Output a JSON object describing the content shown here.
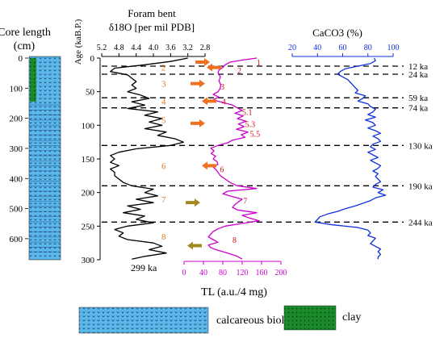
{
  "chart_data": {
    "type": "line",
    "core_column": {
      "title_line1": "Core length",
      "title_line2": "(cm)",
      "y_ticks": [
        "0",
        "100",
        "200",
        "300",
        "400",
        "500",
        "600"
      ],
      "ylim": [
        0,
        670
      ]
    },
    "age_axis": {
      "label": "Age (kaB.P.)",
      "ticks": [
        "0",
        "50",
        "100",
        "150",
        "200",
        "250",
        "300"
      ],
      "ylim": [
        0,
        300
      ]
    },
    "d18o_axis": {
      "title_line1": "Foram bent",
      "title_line2": "δ18O [per mil PDB]",
      "ticks": [
        "5.2",
        "4.8",
        "4.4",
        "4.0",
        "3.6",
        "3.2",
        "2.8"
      ],
      "xlim": [
        5.2,
        2.8
      ],
      "reversed": true
    },
    "tl_axis": {
      "label": "TL (a.u./4 mg)",
      "ticks": [
        "0",
        "40",
        "80",
        "120",
        "160",
        "200"
      ],
      "xlim": [
        0,
        200
      ]
    },
    "caco3_axis": {
      "label": "CaCO3 (%)",
      "ticks": [
        "20",
        "40",
        "60",
        "80",
        "100"
      ],
      "xlim": [
        20,
        100
      ]
    },
    "age_boundaries": [
      {
        "age": 12,
        "label": "12 ka"
      },
      {
        "age": 24,
        "label": "24 ka"
      },
      {
        "age": 59,
        "label": "59 ka"
      },
      {
        "age": 74,
        "label": "74 ka"
      },
      {
        "age": 130,
        "label": "130 ka"
      },
      {
        "age": 190,
        "label": "190 ka"
      },
      {
        "age": 244,
        "label": "244 ka"
      }
    ],
    "bottom_age_label": "299 ka",
    "stage_labels_orange": [
      {
        "text": "2",
        "age": 14
      },
      {
        "text": "3",
        "age": 38
      },
      {
        "text": "4",
        "age": 64
      },
      {
        "text": "5",
        "age": 92
      },
      {
        "text": "6",
        "age": 160
      },
      {
        "text": "7",
        "age": 210
      },
      {
        "text": "8",
        "age": 265
      }
    ],
    "stage_labels_red": [
      {
        "text": "1",
        "age": 6,
        "tl": 150
      },
      {
        "text": "2",
        "age": 18,
        "tl": 110
      },
      {
        "text": "3",
        "age": 42,
        "tl": 75
      },
      {
        "text": "4",
        "age": 64,
        "tl": 78
      },
      {
        "text": "5.1",
        "age": 80,
        "tl": 120
      },
      {
        "text": "5.3",
        "age": 98,
        "tl": 126
      },
      {
        "text": "5.5",
        "age": 112,
        "tl": 136
      },
      {
        "text": "6",
        "age": 165,
        "tl": 74
      },
      {
        "text": "7",
        "age": 212,
        "tl": 122
      },
      {
        "text": "8",
        "age": 270,
        "tl": 100
      }
    ],
    "arrows": [
      {
        "age": 6,
        "dir": "right",
        "color": "#f07020",
        "tl": 50
      },
      {
        "age": 14,
        "dir": "left",
        "color": "#f07020",
        "tl": 50
      },
      {
        "age": 38,
        "dir": "right",
        "color": "#f07020",
        "tl": 40
      },
      {
        "age": 64,
        "dir": "left",
        "color": "#f07020",
        "tl": 40
      },
      {
        "age": 97,
        "dir": "right",
        "color": "#f07020",
        "tl": 40
      },
      {
        "age": 160,
        "dir": "left",
        "color": "#f07020",
        "tl": 40
      },
      {
        "age": 215,
        "dir": "right",
        "color": "#a08a20",
        "tl": 30
      },
      {
        "age": 279,
        "dir": "left",
        "color": "#a08a20",
        "tl": 10
      }
    ],
    "series": [
      {
        "name": "δ18O",
        "color": "#000000",
        "points": [
          [
            0,
            3.2
          ],
          [
            5,
            3.6
          ],
          [
            10,
            4.2
          ],
          [
            15,
            4.9
          ],
          [
            20,
            5.0
          ],
          [
            25,
            4.6
          ],
          [
            30,
            4.5
          ],
          [
            35,
            4.4
          ],
          [
            40,
            4.5
          ],
          [
            45,
            4.4
          ],
          [
            50,
            4.6
          ],
          [
            55,
            4.3
          ],
          [
            60,
            4.1
          ],
          [
            65,
            4.5
          ],
          [
            70,
            4.2
          ],
          [
            75,
            4.6
          ],
          [
            80,
            3.9
          ],
          [
            85,
            4.2
          ],
          [
            90,
            3.8
          ],
          [
            95,
            4.1
          ],
          [
            100,
            3.8
          ],
          [
            105,
            4.2
          ],
          [
            110,
            3.7
          ],
          [
            115,
            3.9
          ],
          [
            120,
            3.5
          ],
          [
            125,
            3.3
          ],
          [
            130,
            3.6
          ],
          [
            135,
            4.4
          ],
          [
            140,
            4.8
          ],
          [
            145,
            5.0
          ],
          [
            150,
            4.9
          ],
          [
            155,
            5.0
          ],
          [
            160,
            4.8
          ],
          [
            165,
            5.0
          ],
          [
            170,
            4.9
          ],
          [
            175,
            4.9
          ],
          [
            180,
            4.8
          ],
          [
            185,
            4.7
          ],
          [
            190,
            4.5
          ],
          [
            195,
            4.0
          ],
          [
            200,
            4.2
          ],
          [
            205,
            3.9
          ],
          [
            210,
            4.4
          ],
          [
            215,
            4.0
          ],
          [
            220,
            4.6
          ],
          [
            225,
            4.3
          ],
          [
            230,
            4.7
          ],
          [
            235,
            4.2
          ],
          [
            240,
            4.4
          ],
          [
            245,
            4.0
          ],
          [
            250,
            4.6
          ],
          [
            255,
            4.9
          ],
          [
            260,
            4.7
          ],
          [
            265,
            4.8
          ],
          [
            270,
            4.6
          ],
          [
            275,
            4.0
          ],
          [
            280,
            3.8
          ],
          [
            285,
            4.1
          ],
          [
            290,
            3.7
          ],
          [
            295,
            4.2
          ],
          [
            299,
            4.5
          ]
        ]
      },
      {
        "name": "TL",
        "color": "#cc00cc",
        "points": [
          [
            0,
            150
          ],
          [
            3,
            120
          ],
          [
            6,
            95
          ],
          [
            10,
            85
          ],
          [
            14,
            80
          ],
          [
            18,
            72
          ],
          [
            22,
            70
          ],
          [
            28,
            75
          ],
          [
            34,
            72
          ],
          [
            40,
            76
          ],
          [
            46,
            74
          ],
          [
            50,
            70
          ],
          [
            54,
            60
          ],
          [
            58,
            72
          ],
          [
            62,
            60
          ],
          [
            66,
            80
          ],
          [
            70,
            100
          ],
          [
            74,
            110
          ],
          [
            78,
            120
          ],
          [
            82,
            105
          ],
          [
            86,
            122
          ],
          [
            90,
            110
          ],
          [
            94,
            128
          ],
          [
            98,
            112
          ],
          [
            102,
            124
          ],
          [
            106,
            108
          ],
          [
            110,
            132
          ],
          [
            114,
            118
          ],
          [
            118,
            126
          ],
          [
            122,
            100
          ],
          [
            126,
            90
          ],
          [
            130,
            70
          ],
          [
            134,
            55
          ],
          [
            138,
            62
          ],
          [
            142,
            56
          ],
          [
            146,
            65
          ],
          [
            150,
            60
          ],
          [
            154,
            68
          ],
          [
            158,
            70
          ],
          [
            162,
            60
          ],
          [
            166,
            66
          ],
          [
            170,
            70
          ],
          [
            175,
            75
          ],
          [
            180,
            85
          ],
          [
            185,
            95
          ],
          [
            190,
            110
          ],
          [
            194,
            150
          ],
          [
            198,
            90
          ],
          [
            202,
            80
          ],
          [
            206,
            100
          ],
          [
            210,
            120
          ],
          [
            214,
            112
          ],
          [
            218,
            105
          ],
          [
            222,
            100
          ],
          [
            226,
            110
          ],
          [
            230,
            150
          ],
          [
            234,
            120
          ],
          [
            238,
            135
          ],
          [
            242,
            155
          ],
          [
            246,
            120
          ],
          [
            250,
            85
          ],
          [
            254,
            70
          ],
          [
            258,
            60
          ],
          [
            262,
            55
          ],
          [
            266,
            50
          ],
          [
            270,
            60
          ],
          [
            274,
            70
          ],
          [
            278,
            50
          ],
          [
            282,
            55
          ],
          [
            286,
            70
          ],
          [
            290,
            90
          ],
          [
            295,
            110
          ],
          [
            299,
            120
          ]
        ]
      },
      {
        "name": "CaCO3",
        "color": "#1030e0",
        "points": [
          [
            0,
            85
          ],
          [
            4,
            86
          ],
          [
            8,
            82
          ],
          [
            12,
            72
          ],
          [
            16,
            62
          ],
          [
            20,
            58
          ],
          [
            24,
            56
          ],
          [
            28,
            60
          ],
          [
            32,
            64
          ],
          [
            36,
            66
          ],
          [
            40,
            68
          ],
          [
            44,
            70
          ],
          [
            48,
            72
          ],
          [
            52,
            70
          ],
          [
            56,
            78
          ],
          [
            60,
            76
          ],
          [
            64,
            72
          ],
          [
            68,
            80
          ],
          [
            72,
            82
          ],
          [
            76,
            86
          ],
          [
            80,
            84
          ],
          [
            84,
            80
          ],
          [
            88,
            86
          ],
          [
            92,
            78
          ],
          [
            96,
            84
          ],
          [
            100,
            86
          ],
          [
            104,
            80
          ],
          [
            108,
            86
          ],
          [
            112,
            90
          ],
          [
            116,
            84
          ],
          [
            120,
            88
          ],
          [
            124,
            90
          ],
          [
            128,
            84
          ],
          [
            132,
            82
          ],
          [
            136,
            86
          ],
          [
            140,
            80
          ],
          [
            144,
            84
          ],
          [
            148,
            88
          ],
          [
            152,
            82
          ],
          [
            156,
            86
          ],
          [
            160,
            90
          ],
          [
            164,
            88
          ],
          [
            168,
            84
          ],
          [
            172,
            88
          ],
          [
            176,
            86
          ],
          [
            180,
            88
          ],
          [
            184,
            90
          ],
          [
            188,
            86
          ],
          [
            192,
            84
          ],
          [
            196,
            92
          ],
          [
            200,
            88
          ],
          [
            204,
            94
          ],
          [
            208,
            86
          ],
          [
            212,
            82
          ],
          [
            216,
            76
          ],
          [
            220,
            70
          ],
          [
            224,
            62
          ],
          [
            228,
            56
          ],
          [
            232,
            48
          ],
          [
            236,
            42
          ],
          [
            240,
            40
          ],
          [
            244,
            38
          ],
          [
            248,
            52
          ],
          [
            252,
            72
          ],
          [
            256,
            80
          ],
          [
            260,
            82
          ],
          [
            264,
            80
          ],
          [
            268,
            86
          ],
          [
            272,
            84
          ],
          [
            276,
            82
          ],
          [
            280,
            86
          ],
          [
            284,
            90
          ],
          [
            288,
            88
          ],
          [
            292,
            90
          ],
          [
            296,
            88
          ],
          [
            299,
            88
          ]
        ]
      }
    ]
  },
  "legend": {
    "ooze_label": "calcareous biological ooze",
    "clay_label": "clay"
  },
  "colors": {
    "ooze_fill": "#5bb8e8",
    "clay_fill": "#1a8a2a",
    "d18o_line": "#000000",
    "tl_line": "#cc00cc",
    "caco3_line": "#1030e0"
  }
}
